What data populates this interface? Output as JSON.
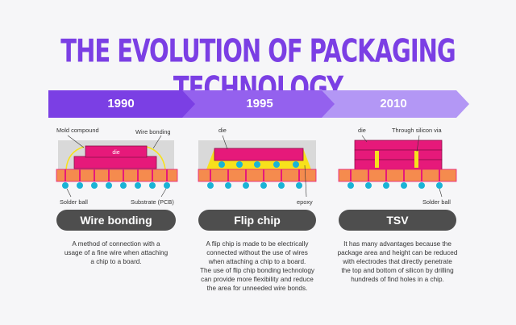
{
  "title": "THE EVOLUTION OF PACKAGING TECHNOLOGY",
  "timeline": {
    "years": [
      "1990",
      "1995",
      "2010"
    ]
  },
  "colors": {
    "purple": "#7b3fe4",
    "purple_light": "#b397f5",
    "pink": "#e6197a",
    "orange": "#f58b4e",
    "cyan": "#19b3d6",
    "yellow": "#f7e11c",
    "gray": "#4e4e4e"
  },
  "panels": [
    {
      "name": "Wire bonding",
      "labels": {
        "mold": "Mold compound",
        "wire": "Wire bonding",
        "die": "die",
        "solder": "Solder ball",
        "substrate": "Substrate (PCB)"
      },
      "description": [
        "A method of connection with a",
        "usage of a fine wire when attaching",
        "a chip to a board."
      ]
    },
    {
      "name": "Flip chip",
      "labels": {
        "die": "die",
        "epoxy": "epoxy"
      },
      "description": [
        "A flip chip is made to be electrically",
        "connected without the use of wires",
        "when attaching a chip to a board.",
        "The use of flip chip bonding technology",
        "can provide more flexibility and reduce",
        "the area for unneeded wire bonds."
      ]
    },
    {
      "name": "TSV",
      "labels": {
        "die": "die",
        "tsv": "Through silicon via",
        "solder": "Solder ball"
      },
      "description": [
        "It has many advantages because the",
        "package area and height can be reduced",
        "with electrodes that directly penetrate",
        "the top and bottom of silicon by drilling",
        "hundreds of find holes in a chip."
      ]
    }
  ]
}
